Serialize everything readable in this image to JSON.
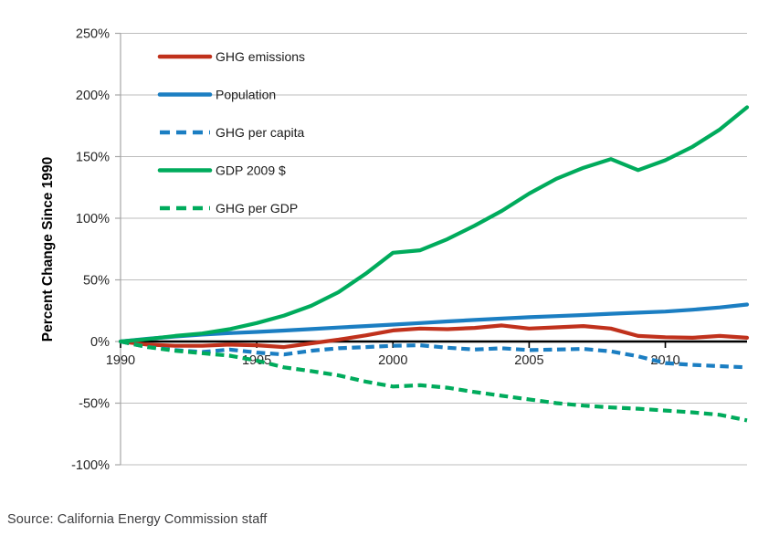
{
  "page": {
    "background": "#ffffff"
  },
  "source_note": "Source: California Energy Commission staff",
  "chart_data": {
    "type": "line",
    "title": "",
    "xlabel": "",
    "ylabel": "Percent Change Since 1990",
    "ylim": [
      -100,
      250
    ],
    "xlim": [
      1990,
      2013
    ],
    "grid": "horizontal",
    "legend_position": "top-left-inside",
    "y_ticks": [
      250,
      200,
      150,
      100,
      50,
      0,
      -50,
      -100
    ],
    "y_tick_labels": [
      "250%",
      "200%",
      "150%",
      "100%",
      "50%",
      "0%",
      "-50%",
      "-100%"
    ],
    "x_ticks": [
      1990,
      1995,
      2000,
      2005,
      2010
    ],
    "x_tick_labels": [
      "1990",
      "1995",
      "2000",
      "2005",
      "2010"
    ],
    "years": [
      1990,
      1991,
      1992,
      1993,
      1994,
      1995,
      1996,
      1997,
      1998,
      1999,
      2000,
      2001,
      2002,
      2003,
      2004,
      2005,
      2006,
      2007,
      2008,
      2009,
      2010,
      2011,
      2012,
      2013
    ],
    "series": [
      {
        "name": "GHG emissions",
        "color": "#c0311c",
        "dash": false,
        "values": [
          0,
          -2.5,
          -3.5,
          -3.5,
          -2.5,
          -3,
          -4.5,
          -1.5,
          1.5,
          5,
          9,
          10.5,
          10,
          11,
          13,
          10.5,
          11.5,
          12.5,
          10.5,
          4.5,
          3.5,
          3,
          4.5,
          3
        ]
      },
      {
        "name": "Population",
        "color": "#1b7ec2",
        "dash": false,
        "values": [
          0,
          2.2,
          4.1,
          5.6,
          6.8,
          7.8,
          8.9,
          10.1,
          11.3,
          12.5,
          13.7,
          15,
          16.3,
          17.5,
          18.6,
          19.7,
          20.6,
          21.5,
          22.5,
          23.4,
          24.3,
          25.8,
          27.6,
          30
        ]
      },
      {
        "name": "GHG per capita",
        "color": "#1b7ec2",
        "dash": true,
        "values": [
          0,
          -4.5,
          -7,
          -8.5,
          -6.5,
          -9,
          -10.5,
          -7.5,
          -5.5,
          -4.5,
          -3.5,
          -3,
          -5,
          -6.5,
          -5.5,
          -7,
          -6.5,
          -6,
          -8,
          -12,
          -17.5,
          -19,
          -20,
          -21
        ]
      },
      {
        "name": "GDP 2009 $",
        "color": "#00ab5c",
        "dash": false,
        "values": [
          0,
          2,
          4.5,
          6.5,
          10,
          15,
          21,
          29,
          40,
          55,
          72,
          74,
          83,
          94,
          106,
          120,
          132,
          141,
          148,
          139,
          147,
          158,
          172,
          190
        ]
      },
      {
        "name": "GHG per GDP",
        "color": "#00ab5c",
        "dash": true,
        "values": [
          0,
          -4.5,
          -7.5,
          -9.5,
          -11.5,
          -15.5,
          -21,
          -24,
          -27.5,
          -32.5,
          -36.5,
          -35.5,
          -37.5,
          -41,
          -44,
          -47,
          -50,
          -52,
          -53.5,
          -54.5,
          -56,
          -57.5,
          -59.5,
          -64
        ]
      }
    ],
    "colors": {
      "grid": "#bdbdbd",
      "y_axis_line": "#a6a6a6",
      "x_axis_line": "#000000",
      "tick_text": "#262626",
      "ylabel_text": "#000000"
    }
  }
}
